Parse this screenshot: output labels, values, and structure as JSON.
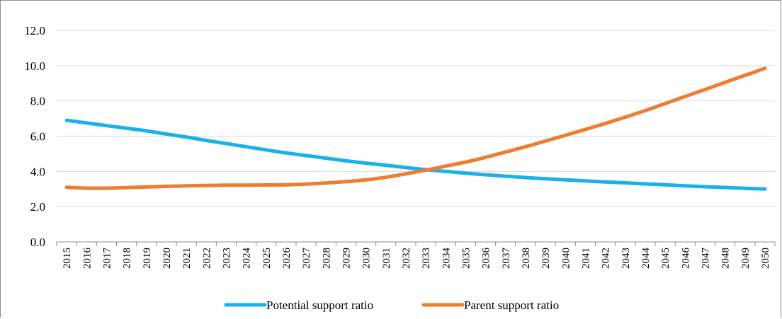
{
  "chart_data": {
    "type": "line",
    "title": "",
    "xlabel": "",
    "ylabel": "",
    "x": [
      2015,
      2016,
      2017,
      2018,
      2019,
      2020,
      2021,
      2022,
      2023,
      2024,
      2025,
      2026,
      2027,
      2028,
      2029,
      2030,
      2031,
      2032,
      2033,
      2034,
      2035,
      2036,
      2037,
      2038,
      2039,
      2040,
      2041,
      2042,
      2043,
      2044,
      2045,
      2046,
      2047,
      2048,
      2049,
      2050
    ],
    "ylim": [
      0,
      12
    ],
    "yticks": [
      "0.0",
      "2.0",
      "4.0",
      "6.0",
      "8.0",
      "10.0",
      "12.0"
    ],
    "grid": true,
    "legend_position": "bottom",
    "series": [
      {
        "name": "Potential support ratio",
        "color": "#1ab0e8",
        "values": [
          6.9,
          6.75,
          6.6,
          6.45,
          6.3,
          6.12,
          5.95,
          5.76,
          5.58,
          5.4,
          5.22,
          5.05,
          4.9,
          4.75,
          4.6,
          4.47,
          4.35,
          4.22,
          4.1,
          4.0,
          3.9,
          3.81,
          3.73,
          3.65,
          3.58,
          3.52,
          3.46,
          3.4,
          3.35,
          3.29,
          3.24,
          3.18,
          3.13,
          3.09,
          3.04,
          3.0
        ]
      },
      {
        "name": "Parent support ratio",
        "color": "#ed7d31",
        "values": [
          3.1,
          3.05,
          3.05,
          3.08,
          3.12,
          3.15,
          3.18,
          3.2,
          3.22,
          3.22,
          3.23,
          3.24,
          3.28,
          3.34,
          3.42,
          3.52,
          3.67,
          3.86,
          4.07,
          4.3,
          4.53,
          4.8,
          5.1,
          5.4,
          5.72,
          6.05,
          6.38,
          6.72,
          7.08,
          7.45,
          7.85,
          8.25,
          8.65,
          9.05,
          9.45,
          9.85
        ]
      }
    ]
  }
}
